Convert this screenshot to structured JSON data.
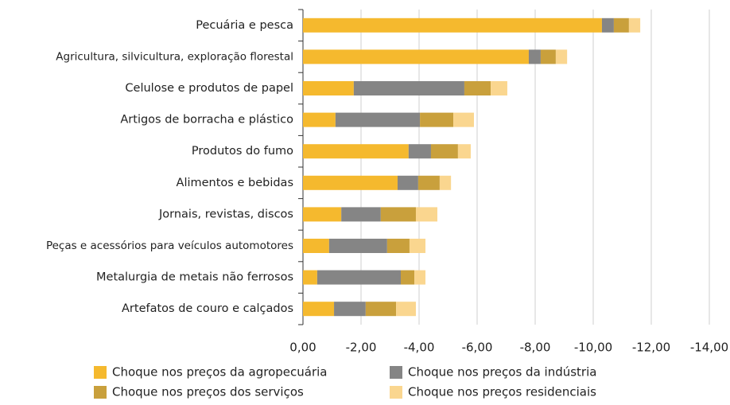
{
  "chart_data": {
    "type": "hbar_stacked",
    "categories": [
      "Pecuária e pesca",
      "Agricultura, silvicultura, exploração florestal",
      "Celulose e produtos de papel",
      "Artigos de borracha e plástico",
      "Produtos do fumo",
      "Alimentos e bebidas",
      "Jornais, revistas, discos",
      "Peças e acessórios para veículos automotores",
      "Metalurgia de metais não ferrosos",
      "Artefatos de couro e calçados"
    ],
    "series": [
      {
        "name": "Choque nos preços da agropecuária",
        "color": "#f5b92e",
        "values": [
          -10.3,
          -7.78,
          -1.75,
          -1.12,
          -3.64,
          -3.26,
          -1.32,
          -0.9,
          -0.49,
          -1.07
        ]
      },
      {
        "name": "Choque nos preços da indústria",
        "color": "#858585",
        "values": [
          -0.41,
          -0.41,
          -3.81,
          -2.91,
          -0.77,
          -0.71,
          -1.36,
          -2.0,
          -2.88,
          -1.09
        ]
      },
      {
        "name": "Choque nos preços dos serviços",
        "color": "#c9a03c",
        "values": [
          -0.52,
          -0.52,
          -0.91,
          -1.15,
          -0.93,
          -0.74,
          -1.21,
          -0.77,
          -0.47,
          -1.05
        ]
      },
      {
        "name": "Choque nos preços residenciais",
        "color": "#fad68f",
        "values": [
          -0.39,
          -0.39,
          -0.57,
          -0.71,
          -0.44,
          -0.39,
          -0.74,
          -0.55,
          -0.38,
          -0.68
        ]
      }
    ],
    "xlim": [
      0,
      -14
    ],
    "xticks": [
      {
        "value": 0,
        "label": "0,00"
      },
      {
        "value": -2,
        "label": "-2,00"
      },
      {
        "value": -4,
        "label": "-4,00"
      },
      {
        "value": -6,
        "label": "-6,00"
      },
      {
        "value": -8,
        "label": "-8,00"
      },
      {
        "value": -10,
        "label": "-10,00"
      },
      {
        "value": -12,
        "label": "-12,00"
      },
      {
        "value": -14,
        "label": "-14,00"
      }
    ],
    "grid": true,
    "legend": "bottom"
  }
}
